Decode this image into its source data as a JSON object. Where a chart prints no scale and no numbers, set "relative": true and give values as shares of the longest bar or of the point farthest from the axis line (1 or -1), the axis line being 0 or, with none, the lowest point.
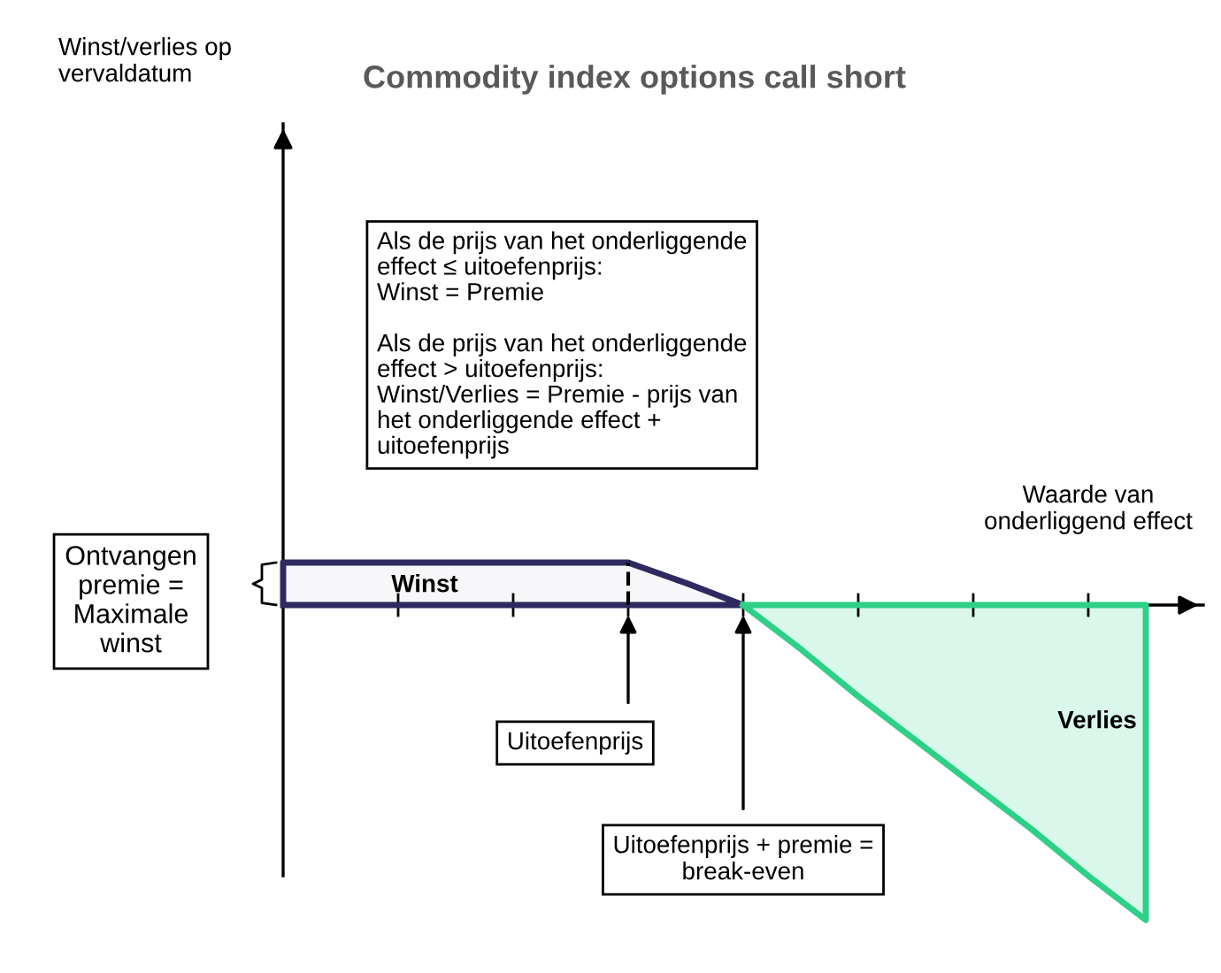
{
  "chart_data": {
    "type": "area",
    "relative": true,
    "title": "Commodity index options call short",
    "xlabel": "Waarde van\nonderliggend effect",
    "categories": [
      null,
      null,
      null,
      null,
      null,
      null,
      null,
      null,
      null,
      null,
      null,
      null,
      null,
      null,
      null,
      null,
      null
    ],
    "series": [
      {
        "color": "#2e2a60",
        "values": [
          0.135,
          0.135,
          0.135,
          0.135,
          0.135,
          0.135,
          0.135,
          0.07,
          0,
          null,
          null,
          null,
          null,
          null,
          null,
          null,
          null
        ]
      },
      {
        "color": "#2ed088",
        "values": [
          null,
          null,
          null,
          null,
          null,
          null,
          null,
          null,
          0,
          -0.14,
          -0.29,
          -0.43,
          -0.57,
          -0.71,
          -0.86,
          -1,
          null
        ]
      }
    ],
    "annotations": [
      "Als de prijs van het onderliggende\neffect ≤ uitoefenprijs:\nWinst = Premie\n\nAls de prijs van het onderliggende\neffect > uitoefenprijs:\nWinst/Verlies = Premie - prijs van\nhet onderliggende effect +\nuitoefenprijs",
      "Ontvangen\npremie =\nMaximale\nwinst",
      "Winst",
      "Uitoefenprijs",
      "Uitoefenprijs + premie =\nbreak-even",
      "Verlies",
      "Winst/verlies op\nvervaldatum"
    ]
  }
}
